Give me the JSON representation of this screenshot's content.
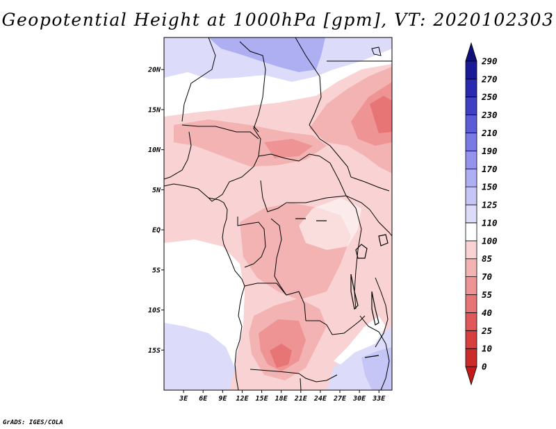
{
  "title": "Geopotential Height at 1000hPa [gpm], VT: 2020102303",
  "credit": "GrADS: IGES/COLA",
  "map": {
    "lon_range": [
      0,
      35
    ],
    "lat_range": [
      -20,
      24
    ],
    "y_ticks": [
      "20N",
      "15N",
      "10N",
      "5N",
      "EQ",
      "5S",
      "10S",
      "15S"
    ],
    "y_tick_values": [
      20,
      15,
      10,
      5,
      0,
      -5,
      -10,
      -15
    ],
    "x_ticks": [
      "3E",
      "6E",
      "9E",
      "12E",
      "15E",
      "18E",
      "21E",
      "24E",
      "27E",
      "30E",
      "33E"
    ],
    "x_tick_values": [
      3,
      6,
      9,
      12,
      15,
      18,
      21,
      24,
      27,
      30,
      33
    ]
  },
  "colorbar": {
    "levels": [
      "0",
      "10",
      "25",
      "40",
      "55",
      "70",
      "85",
      "100",
      "110",
      "125",
      "150",
      "170",
      "190",
      "210",
      "230",
      "250",
      "270",
      "290"
    ],
    "colors": [
      "#c21a1a",
      "#cc2b2b",
      "#d84040",
      "#e05858",
      "#e77575",
      "#ee9494",
      "#f3b3b3",
      "#f9d3d3",
      "#ffffff",
      "#dcdcfa",
      "#c6c6f6",
      "#aeaef2",
      "#9494ee",
      "#7a7ae4",
      "#5c5cd6",
      "#4040c4",
      "#2a2ab0",
      "#1a1a96",
      "#10107a"
    ]
  }
}
